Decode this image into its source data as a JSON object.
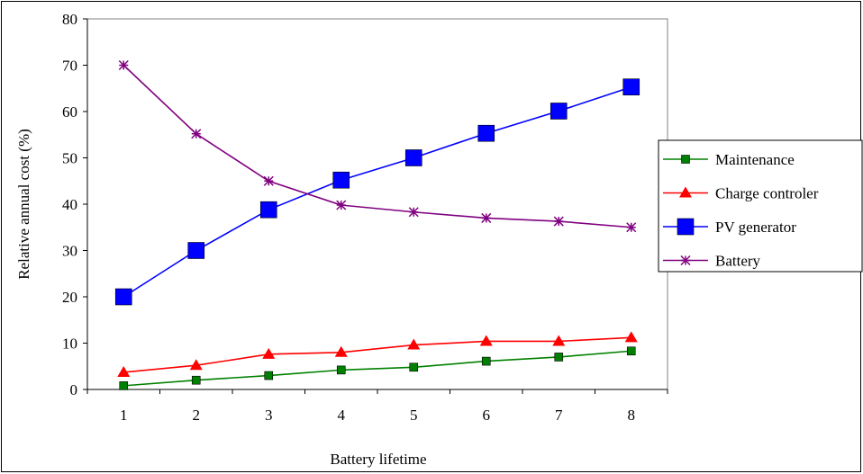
{
  "chart_data": {
    "type": "line",
    "title": "",
    "xlabel": "Battery lifetime",
    "ylabel": "Relative annual cost (%)",
    "x": [
      1,
      2,
      3,
      4,
      5,
      6,
      7,
      8
    ],
    "ylim": [
      0,
      80
    ],
    "yticks": [
      0,
      10,
      20,
      30,
      40,
      50,
      60,
      70,
      80
    ],
    "grid": false,
    "legend_position": "right",
    "series": [
      {
        "name": "Maintenance",
        "color": "#008000",
        "marker": "square-small",
        "values": [
          0.8,
          2,
          3,
          4.2,
          4.8,
          6.1,
          7,
          8.3
        ]
      },
      {
        "name": "Charge controler",
        "color": "#ff0000",
        "marker": "triangle",
        "values": [
          3.7,
          5.2,
          7.6,
          8,
          9.6,
          10.4,
          10.4,
          11.2
        ]
      },
      {
        "name": "PV generator",
        "color": "#0000ff",
        "marker": "square-large",
        "values": [
          20,
          30,
          38.8,
          45.2,
          50,
          55.3,
          60.1,
          65.3
        ]
      },
      {
        "name": "Battery",
        "color": "#800080",
        "marker": "asterisk",
        "values": [
          70,
          55.2,
          45,
          39.8,
          38.3,
          37,
          36.3,
          35
        ]
      }
    ]
  }
}
